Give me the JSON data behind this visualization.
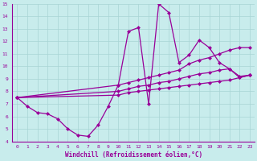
{
  "xlabel": "Windchill (Refroidissement éolien,°C)",
  "xlim": [
    -0.5,
    23.5
  ],
  "ylim": [
    4,
    15
  ],
  "xticks": [
    0,
    1,
    2,
    3,
    4,
    5,
    6,
    7,
    8,
    9,
    10,
    11,
    12,
    13,
    14,
    15,
    16,
    17,
    18,
    19,
    20,
    21,
    22,
    23
  ],
  "yticks": [
    4,
    5,
    6,
    7,
    8,
    9,
    10,
    11,
    12,
    13,
    14,
    15
  ],
  "bg_color": "#c8ecec",
  "grid_color": "#a8d4d4",
  "line_color": "#990099",
  "marker": "D",
  "markersize": 2.5,
  "linewidth": 0.9,
  "lines": [
    {
      "name": "jagged_spike",
      "x": [
        0,
        1,
        2,
        3,
        4,
        5,
        6,
        7,
        8,
        9,
        10,
        11,
        12,
        13,
        14,
        15,
        16,
        17,
        18,
        19,
        20,
        21,
        22,
        23
      ],
      "y": [
        7.5,
        6.8,
        6.3,
        6.2,
        5.8,
        5.0,
        4.5,
        4.4,
        5.3,
        6.8,
        8.5,
        12.8,
        13.1,
        7.0,
        15.0,
        14.3,
        10.3,
        10.9,
        12.1,
        11.5,
        10.3,
        9.8,
        9.1,
        9.3
      ]
    },
    {
      "name": "upper_trend",
      "x": [
        0,
        10,
        11,
        12,
        13,
        14,
        15,
        16,
        17,
        18,
        19,
        20,
        21,
        22,
        23
      ],
      "y": [
        7.5,
        8.5,
        8.7,
        8.9,
        9.1,
        9.3,
        9.5,
        9.7,
        10.2,
        10.5,
        10.7,
        11.0,
        11.3,
        11.5,
        11.5
      ]
    },
    {
      "name": "mid_trend",
      "x": [
        0,
        10,
        11,
        12,
        13,
        14,
        15,
        16,
        17,
        18,
        19,
        20,
        21,
        22,
        23
      ],
      "y": [
        7.5,
        8.0,
        8.2,
        8.4,
        8.5,
        8.7,
        8.8,
        9.0,
        9.2,
        9.4,
        9.5,
        9.7,
        9.8,
        9.2,
        9.3
      ]
    },
    {
      "name": "lower_trend",
      "x": [
        0,
        10,
        11,
        12,
        13,
        14,
        15,
        16,
        17,
        18,
        19,
        20,
        21,
        22,
        23
      ],
      "y": [
        7.5,
        7.7,
        7.9,
        8.0,
        8.1,
        8.2,
        8.3,
        8.4,
        8.5,
        8.6,
        8.7,
        8.8,
        8.9,
        9.1,
        9.3
      ]
    }
  ]
}
